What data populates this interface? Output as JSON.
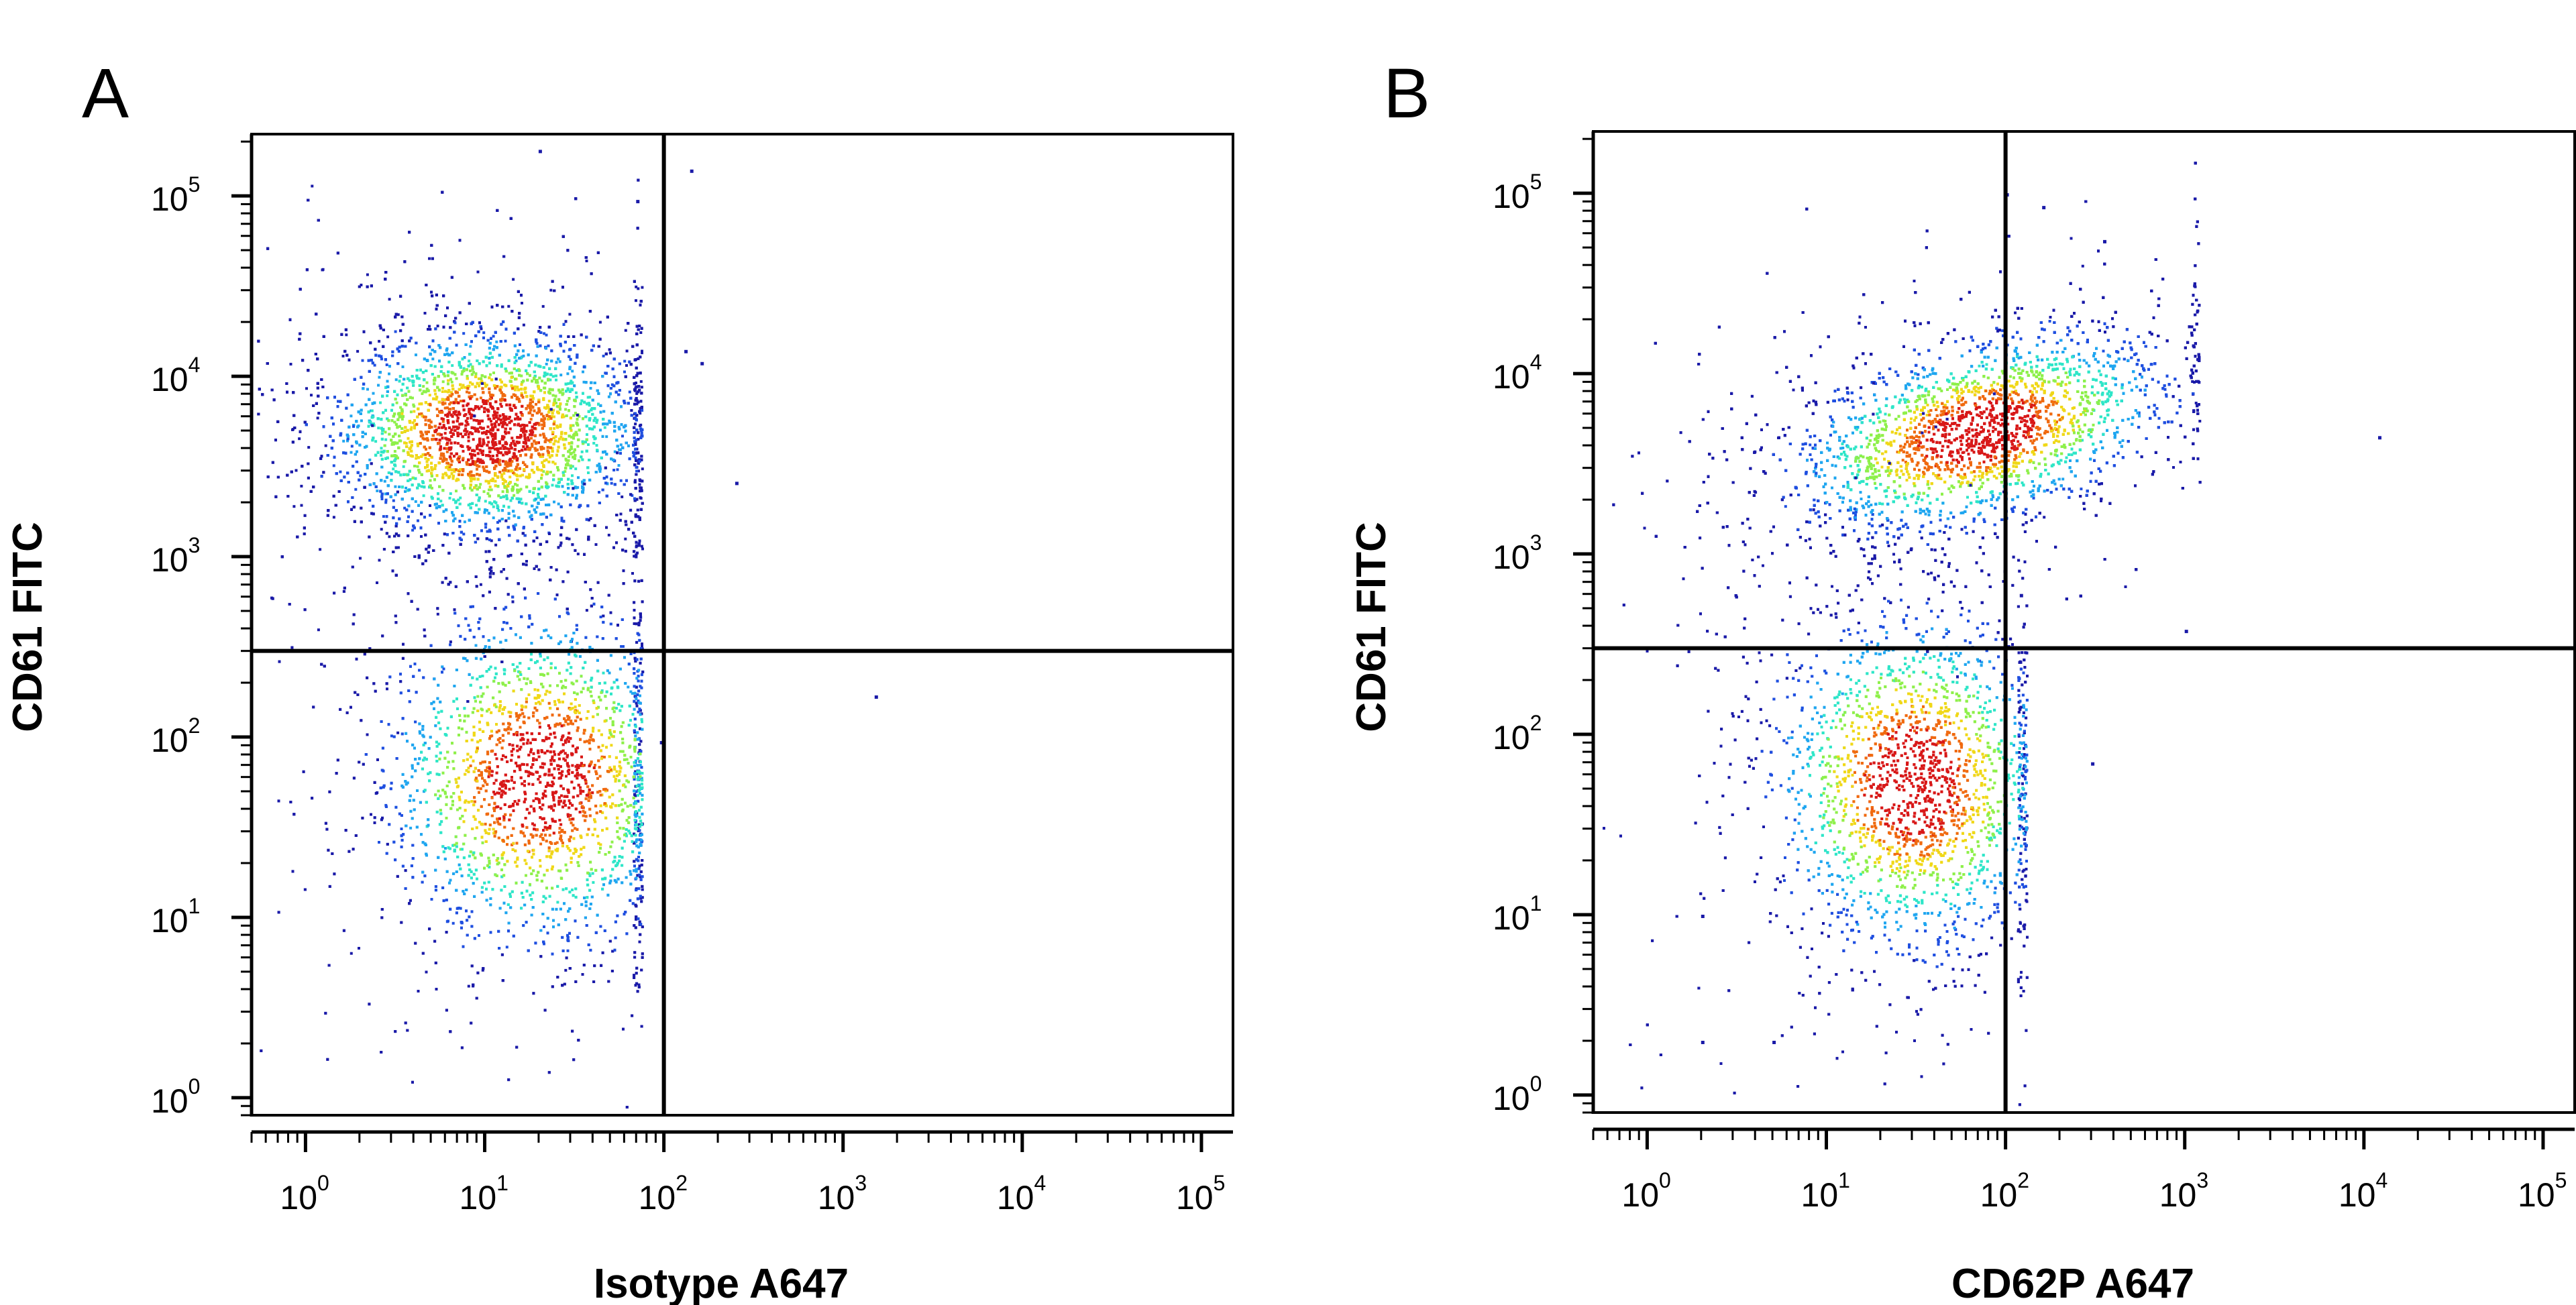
{
  "chart_data": [
    {
      "type": "scatter",
      "subtype": "flow-cytometry-density-dot-plot",
      "panel_label": "A",
      "xlabel": "Isotype A647",
      "ylabel": "CD61 FITC",
      "x_scale": "log",
      "y_scale": "log",
      "xlim": [
        0.5,
        150000
      ],
      "ylim": [
        0.8,
        220000
      ],
      "x_ticks": [
        1,
        10,
        100,
        1000,
        10000,
        100000
      ],
      "y_ticks": [
        1,
        10,
        100,
        1000,
        10000,
        100000
      ],
      "x_tick_labels": [
        {
          "base": "10",
          "exp": "0"
        },
        {
          "base": "10",
          "exp": "1"
        },
        {
          "base": "10",
          "exp": "2"
        },
        {
          "base": "10",
          "exp": "3"
        },
        {
          "base": "10",
          "exp": "4"
        },
        {
          "base": "10",
          "exp": "5"
        }
      ],
      "y_tick_labels": [
        {
          "base": "10",
          "exp": "0"
        },
        {
          "base": "10",
          "exp": "1"
        },
        {
          "base": "10",
          "exp": "2"
        },
        {
          "base": "10",
          "exp": "3"
        },
        {
          "base": "10",
          "exp": "4"
        },
        {
          "base": "10",
          "exp": "5"
        }
      ],
      "quadrant_gates": {
        "x": 100,
        "y": 300
      },
      "grid": false,
      "populations": [
        {
          "x_center": 10,
          "y_center": 5000,
          "x_spread_decades": 0.42,
          "y_spread_decades": 0.27,
          "tilt": 0.0,
          "relative_count": 9000,
          "x_clip_max": 75
        },
        {
          "x_center": 20,
          "y_center": 60,
          "x_spread_decades": 0.42,
          "y_spread_decades": 0.45,
          "tilt": 0.0,
          "relative_count": 4500,
          "x_clip_max": 75
        }
      ],
      "sparse_events": [
        [
          140,
          140000
        ],
        [
          130,
          14000
        ],
        [
          250,
          2600
        ],
        [
          1500,
          170
        ],
        [
          95,
          95
        ],
        [
          20,
          180000
        ],
        [
          70,
          95000
        ],
        [
          160,
          12000
        ]
      ]
    },
    {
      "type": "scatter",
      "subtype": "flow-cytometry-density-dot-plot",
      "panel_label": "B",
      "xlabel": "CD62P A647",
      "ylabel": "CD61 FITC",
      "x_scale": "log",
      "y_scale": "log",
      "xlim": [
        0.5,
        150000
      ],
      "ylim": [
        0.8,
        220000
      ],
      "x_ticks": [
        1,
        10,
        100,
        1000,
        10000,
        100000
      ],
      "y_ticks": [
        1,
        10,
        100,
        1000,
        10000,
        100000
      ],
      "x_tick_labels": [
        {
          "base": "10",
          "exp": "0"
        },
        {
          "base": "10",
          "exp": "1"
        },
        {
          "base": "10",
          "exp": "2"
        },
        {
          "base": "10",
          "exp": "3"
        },
        {
          "base": "10",
          "exp": "4"
        },
        {
          "base": "10",
          "exp": "5"
        }
      ],
      "y_tick_labels": [
        {
          "base": "10",
          "exp": "0"
        },
        {
          "base": "10",
          "exp": "1"
        },
        {
          "base": "10",
          "exp": "2"
        },
        {
          "base": "10",
          "exp": "3"
        },
        {
          "base": "10",
          "exp": "4"
        },
        {
          "base": "10",
          "exp": "5"
        }
      ],
      "quadrant_gates": {
        "x": 100,
        "y": 300
      },
      "grid": false,
      "populations": [
        {
          "x_center": 70,
          "y_center": 4800,
          "x_spread_decades": 0.5,
          "y_spread_decades": 0.24,
          "tilt": 0.22,
          "relative_count": 9000,
          "x_clip_max": 1200
        },
        {
          "x_center": 30,
          "y_center": 55,
          "x_spread_decades": 0.38,
          "y_spread_decades": 0.45,
          "tilt": 0.0,
          "relative_count": 4500,
          "x_clip_max": 130
        }
      ],
      "sparse_events": [
        [
          100,
          100000
        ],
        [
          160,
          85000
        ],
        [
          350,
          55000
        ],
        [
          12000,
          4500
        ],
        [
          1000,
          380
        ],
        [
          300,
          70
        ],
        [
          120,
          600
        ],
        [
          5,
          2
        ],
        [
          2,
          2
        ],
        [
          2,
          10
        ]
      ]
    }
  ],
  "colormap": [
    "#1a1aa8",
    "#1f4fe0",
    "#1fa6f0",
    "#2ee6c8",
    "#8ef04a",
    "#f0d818",
    "#f06a10",
    "#d81818"
  ]
}
